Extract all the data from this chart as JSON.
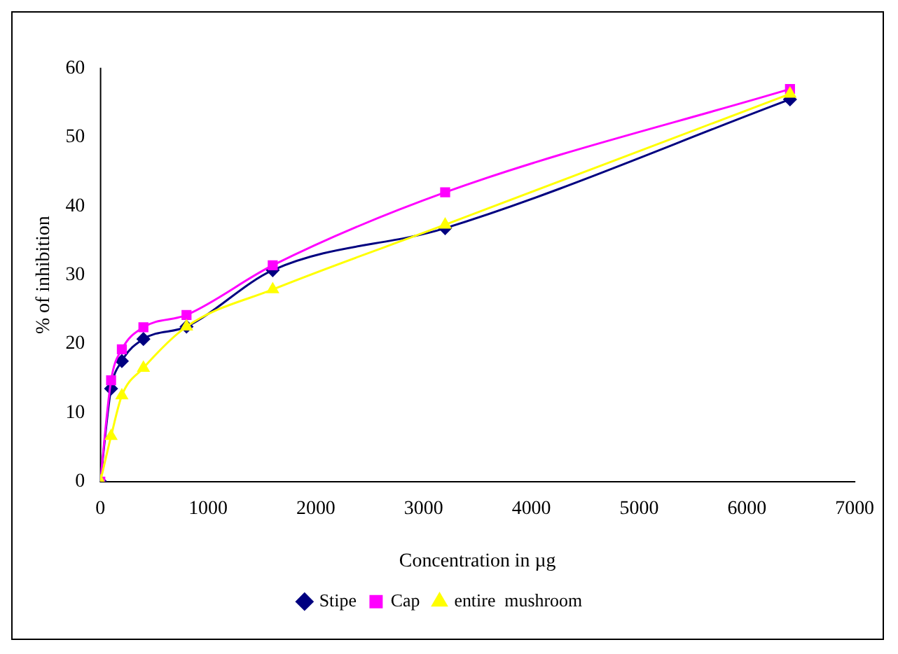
{
  "chart_data": {
    "type": "line",
    "xlabel": "Concentration in µg",
    "ylabel": "% of inhibition",
    "x": [
      0,
      100,
      200,
      400,
      800,
      1600,
      3200,
      6400
    ],
    "series": [
      {
        "name": "Stipe",
        "color": "#000080",
        "marker": "diamond",
        "values": [
          0,
          13.5,
          17.5,
          20.7,
          22.5,
          30.7,
          36.8,
          55.5
        ]
      },
      {
        "name": "Cap",
        "color": "#ff00ff",
        "marker": "square",
        "values": [
          0,
          14.7,
          19.2,
          22.4,
          24.2,
          31.4,
          42,
          57
        ]
      },
      {
        "name": "entire  mushroom",
        "color": "#ffff00",
        "marker": "triangle",
        "values": [
          0,
          6.6,
          12.5,
          16.5,
          22.5,
          27.9,
          37.3,
          56.3
        ]
      }
    ],
    "xlim": [
      0,
      7000
    ],
    "xticks": [
      0,
      1000,
      2000,
      3000,
      4000,
      5000,
      6000,
      7000
    ],
    "ylim": [
      0,
      60
    ],
    "yticks": [
      0,
      10,
      20,
      30,
      40,
      50,
      60
    ],
    "grid": false,
    "legend": "bottom"
  }
}
